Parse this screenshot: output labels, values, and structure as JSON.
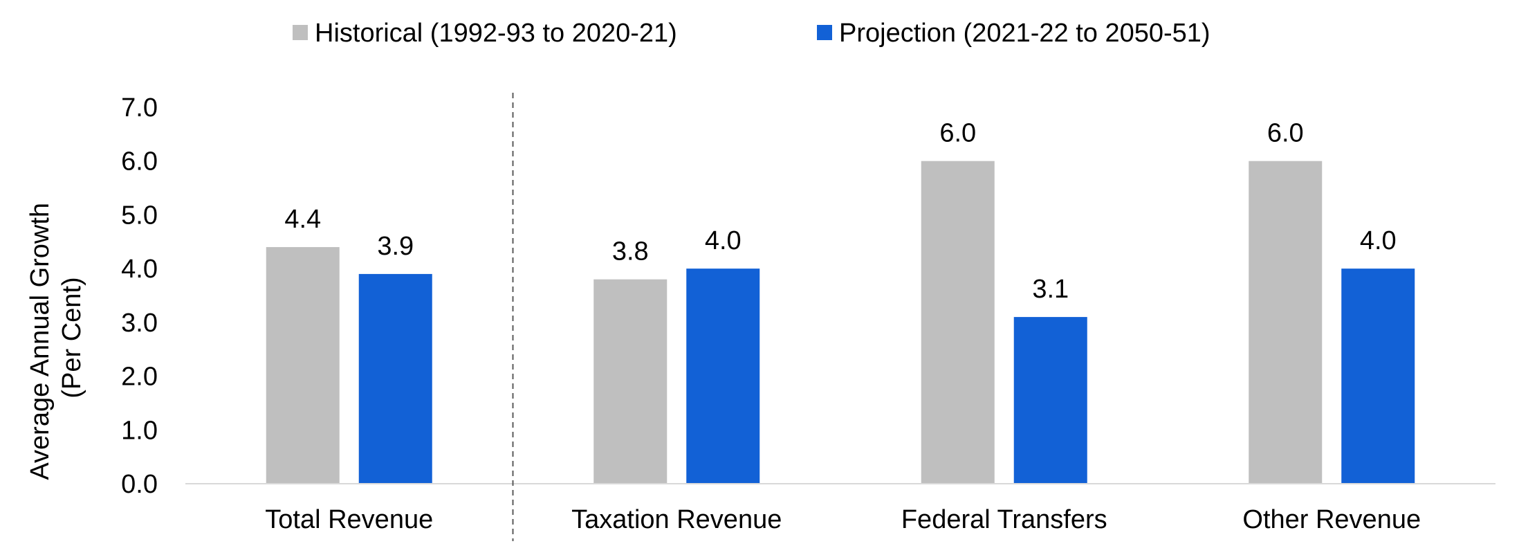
{
  "chart_data": {
    "type": "bar",
    "categories": [
      "Total Revenue",
      "Taxation Revenue",
      "Federal Transfers",
      "Other Revenue"
    ],
    "series": [
      {
        "name": "Historical (1992-93 to 2020-21)",
        "values": [
          4.4,
          3.8,
          6.0,
          6.0
        ],
        "color": "#bfbfbf"
      },
      {
        "name": "Projection (2021-22 to 2050-51)",
        "values": [
          3.9,
          4.0,
          3.1,
          4.0
        ],
        "color": "#1261d6"
      }
    ],
    "data_labels": [
      [
        "4.4",
        "3.8",
        "6.0",
        "6.0"
      ],
      [
        "3.9",
        "4.0",
        "3.1",
        "4.0"
      ]
    ],
    "ylabel": [
      "Average Annual Growth",
      "(Per Cent)"
    ],
    "yticks": [
      "0.0",
      "1.0",
      "2.0",
      "3.0",
      "4.0",
      "5.0",
      "6.0",
      "7.0"
    ],
    "ylim": [
      0,
      7
    ],
    "grid": false,
    "legend_position": "top",
    "separator_after_category": 0,
    "axis_color": "#d9d9d9",
    "separator_color": "#595959"
  }
}
